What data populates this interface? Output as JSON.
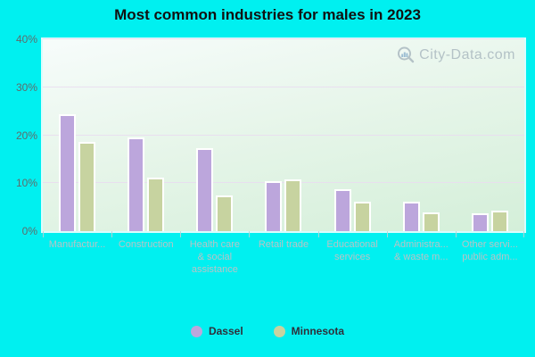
{
  "title": "Most common industries for males in 2023",
  "watermark": {
    "text": "City-Data.com"
  },
  "colors": {
    "background": "#00F0F0",
    "plot_gradient_top": "#F7FCFB",
    "plot_gradient_bottom": "#D4EFD9",
    "gridline": "#E9DDF0",
    "bar_border": "#FFFFFF",
    "dassel_bar": "#BCA6DC",
    "minnesota_bar": "#C7D3A0",
    "y_axis_label": "#5F6B6B",
    "category_label": "#B9C3C6",
    "title_text": "#111111",
    "legend_text": "#2F2F3A",
    "watermark_text": "#9FAEB8"
  },
  "chart_data": {
    "type": "bar",
    "title": "Most common industries for males in 2023",
    "categories": [
      [
        "Manufactur..."
      ],
      [
        "Construction"
      ],
      [
        "Health care",
        "& social",
        "assistance"
      ],
      [
        "Retail trade"
      ],
      [
        "Educational",
        "services"
      ],
      [
        "Administra...",
        "& waste m..."
      ],
      [
        "Other servi...",
        "public adm..."
      ]
    ],
    "series": [
      {
        "name": "Dassel",
        "color": "#BCA6DC",
        "values": [
          24.0,
          19.1,
          16.9,
          10.0,
          8.4,
          5.7,
          3.3
        ]
      },
      {
        "name": "Minnesota",
        "color": "#C7D3A0",
        "values": [
          18.2,
          10.8,
          7.0,
          10.5,
          5.7,
          3.6,
          3.9
        ]
      }
    ],
    "xlabel": "",
    "ylabel": "",
    "ylim": [
      0,
      40
    ],
    "yticks": [
      "0%",
      "10%",
      "20%",
      "30%",
      "40%"
    ],
    "grid": true,
    "legend_position": "bottom"
  }
}
